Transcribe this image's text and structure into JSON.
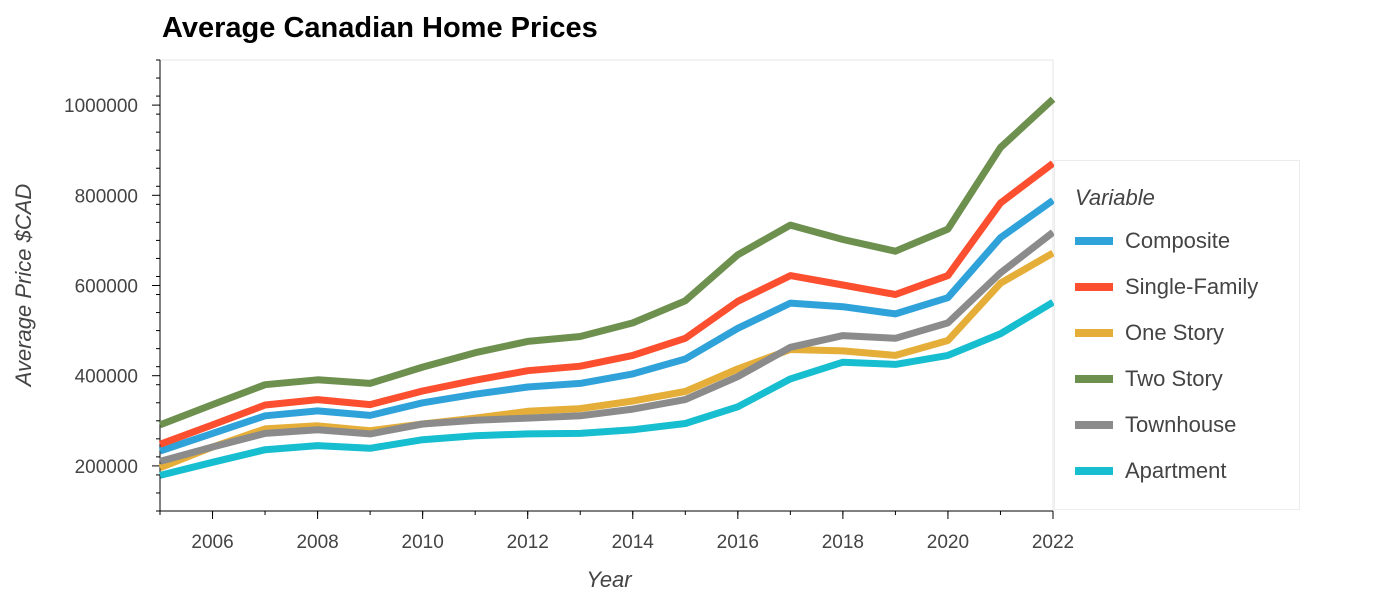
{
  "chart_data": {
    "type": "line",
    "title": "Average Canadian Home Prices",
    "xlabel": "Year",
    "ylabel": "Average Price $CAD",
    "xlim": [
      2005,
      2022
    ],
    "ylim": [
      100000,
      1100000
    ],
    "x_ticks": [
      "2006",
      "2008",
      "2010",
      "2012",
      "2014",
      "2016",
      "2018",
      "2020",
      "2022"
    ],
    "y_ticks": [
      "200000",
      "400000",
      "600000",
      "800000",
      "1000000"
    ],
    "legend_title": "Variable",
    "legend_position": "right",
    "x": [
      2005,
      2006,
      2007,
      2008,
      2009,
      2010,
      2011,
      2012,
      2013,
      2014,
      2015,
      2016,
      2017,
      2018,
      2019,
      2020,
      2021,
      2022
    ],
    "series": [
      {
        "name": "Composite",
        "color": "#30a2da",
        "values": [
          233000,
          272000,
          311000,
          322000,
          312000,
          340000,
          359000,
          375000,
          383000,
          404000,
          437000,
          505000,
          561000,
          553000,
          537000,
          573000,
          706000,
          789000
        ]
      },
      {
        "name": "Single-Family",
        "color": "#fc4f30",
        "values": [
          248000,
          291000,
          335000,
          347000,
          336000,
          366000,
          390000,
          411000,
          421000,
          445000,
          483000,
          565000,
          622000,
          601000,
          580000,
          622000,
          783000,
          871000
        ]
      },
      {
        "name": "One Story",
        "color": "#e5ae38",
        "values": [
          196000,
          242000,
          282000,
          289000,
          278000,
          293000,
          306000,
          321000,
          327000,
          344000,
          365000,
          415000,
          458000,
          455000,
          445000,
          478000,
          605000,
          672000
        ]
      },
      {
        "name": "Two Story",
        "color": "#6d904f",
        "values": [
          291000,
          336000,
          380000,
          391000,
          383000,
          419000,
          451000,
          476000,
          487000,
          517000,
          566000,
          668000,
          734000,
          702000,
          676000,
          725000,
          906000,
          1013000
        ]
      },
      {
        "name": "Townhouse",
        "color": "#8b8b8b",
        "values": [
          210000,
          242000,
          272000,
          280000,
          271000,
          293000,
          301000,
          306000,
          311000,
          326000,
          347000,
          398000,
          463000,
          489000,
          483000,
          517000,
          628000,
          718000
        ]
      },
      {
        "name": "Apartment",
        "color": "#17becf",
        "values": [
          179000,
          208000,
          236000,
          245000,
          239000,
          258000,
          267000,
          271000,
          272000,
          280000,
          294000,
          331000,
          393000,
          430000,
          425000,
          445000,
          493000,
          563000
        ]
      }
    ]
  }
}
